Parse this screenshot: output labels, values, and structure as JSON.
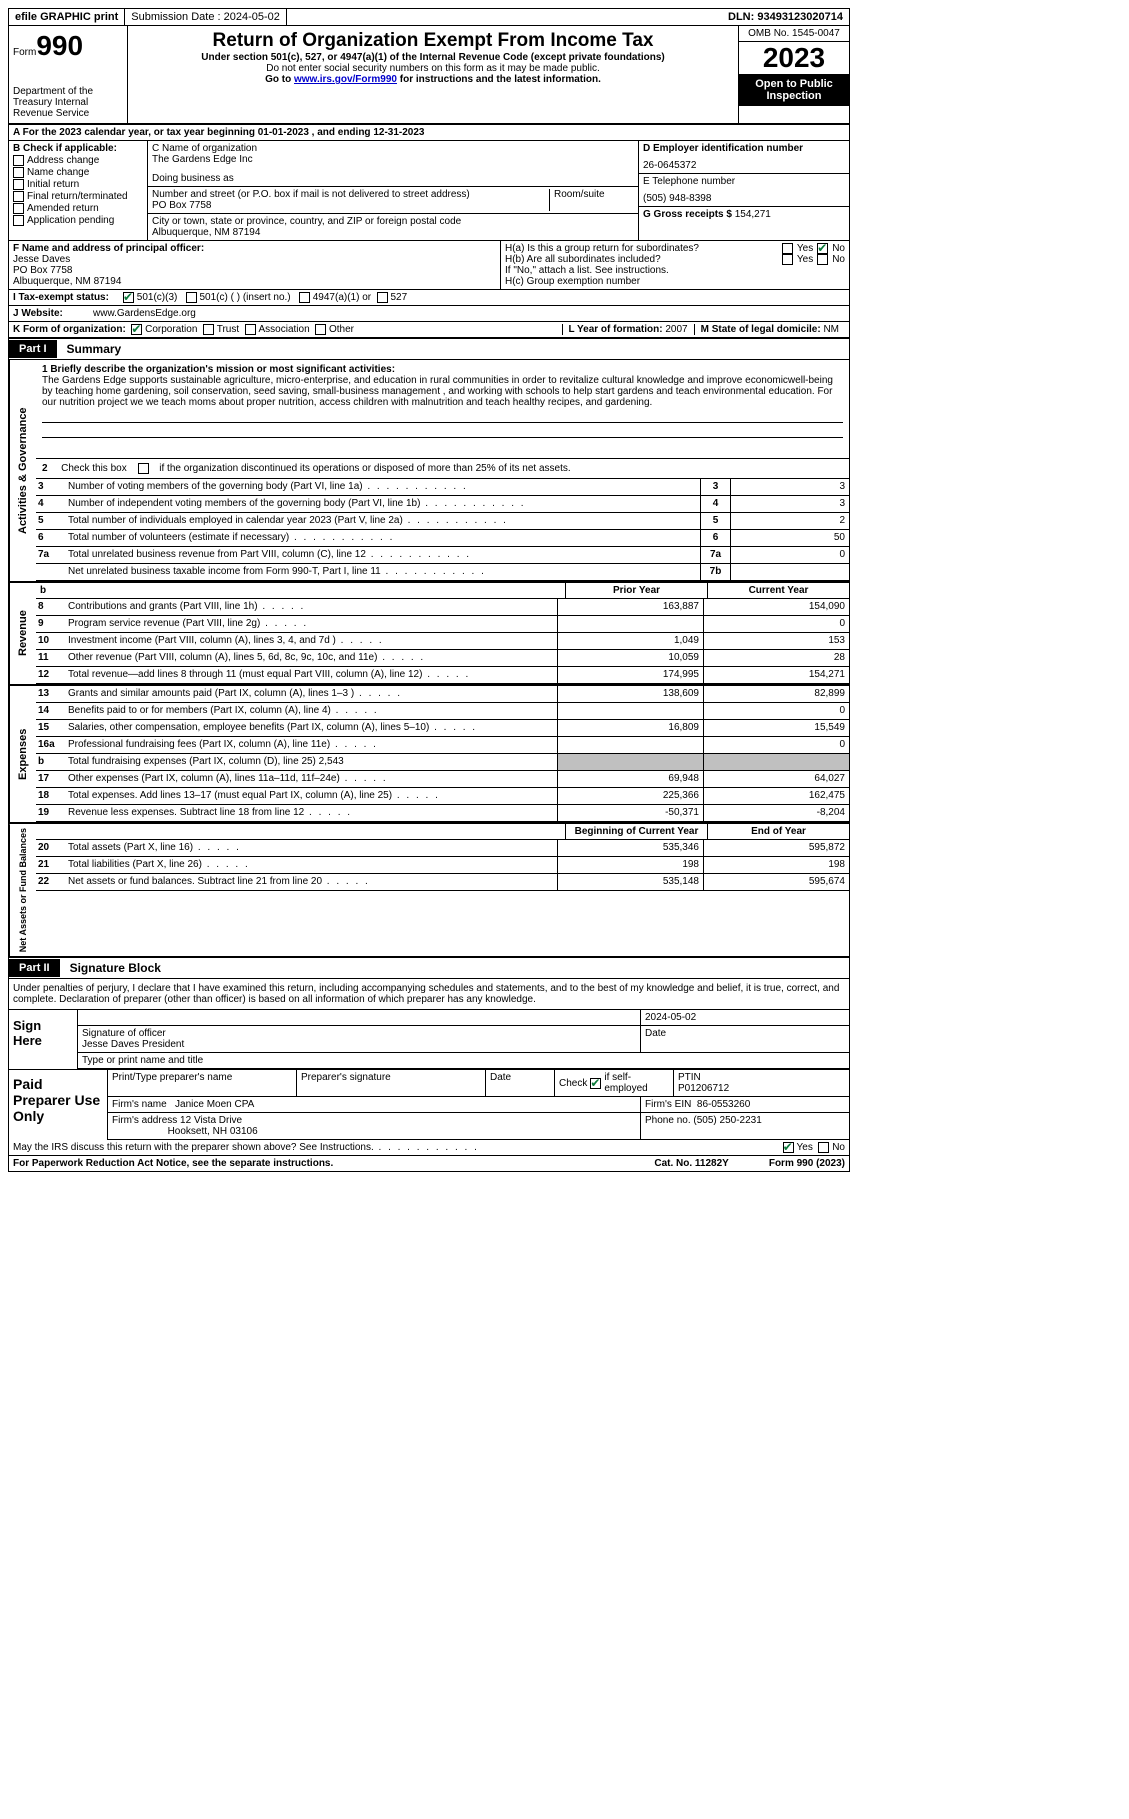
{
  "topbar": {
    "efile": "efile GRAPHIC print",
    "submission_label": "Submission Date : 2024-05-02",
    "dln": "DLN: 93493123020714"
  },
  "header": {
    "form_word": "Form",
    "form_num": "990",
    "dept": "Department of the Treasury Internal Revenue Service",
    "title": "Return of Organization Exempt From Income Tax",
    "subtitle": "Under section 501(c), 527, or 4947(a)(1) of the Internal Revenue Code (except private foundations)",
    "note1": "Do not enter social security numbers on this form as it may be made public.",
    "note2_pre": "Go to ",
    "note2_link": "www.irs.gov/Form990",
    "note2_post": " for instructions and the latest information.",
    "omb": "OMB No. 1545-0047",
    "year": "2023",
    "inspect": "Open to Public Inspection"
  },
  "section_a": "A  For the 2023 calendar year, or tax year beginning 01-01-2023   , and ending 12-31-2023",
  "col_b": {
    "label": "B Check if applicable:",
    "items": [
      "Address change",
      "Name change",
      "Initial return",
      "Final return/terminated",
      "Amended return",
      "Application pending"
    ]
  },
  "col_c": {
    "name_label": "C Name of organization",
    "name": "The Gardens Edge Inc",
    "dba_label": "Doing business as",
    "addr_label": "Number and street (or P.O. box if mail is not delivered to street address)",
    "room_label": "Room/suite",
    "addr": "PO Box 7758",
    "city_label": "City or town, state or province, country, and ZIP or foreign postal code",
    "city": "Albuquerque, NM  87194"
  },
  "col_d": {
    "ein_label": "D Employer identification number",
    "ein": "26-0645372",
    "phone_label": "E Telephone number",
    "phone": "(505) 948-8398",
    "gross_label": "G Gross receipts $",
    "gross": "154,271"
  },
  "officer": {
    "label": "F  Name and address of principal officer:",
    "name": "Jesse Daves",
    "addr1": "PO Box 7758",
    "addr2": "Albuquerque, NM  87194",
    "ha": "H(a)  Is this a group return for subordinates?",
    "hb": "H(b)  Are all subordinates included?",
    "hb_note": "If \"No,\" attach a list. See instructions.",
    "hc": "H(c)  Group exemption number",
    "yes": "Yes",
    "no": "No"
  },
  "status_row": {
    "label": "I   Tax-exempt status:",
    "c3": "501(c)(3)",
    "c_other": "501(c) (  ) (insert no.)",
    "a1": "4947(a)(1) or",
    "s527": "527"
  },
  "website": {
    "label": "J  Website:",
    "value": "www.GardensEdge.org"
  },
  "k_row": {
    "label": "K Form of organization:",
    "corp": "Corporation",
    "trust": "Trust",
    "assoc": "Association",
    "other": "Other",
    "year_label": "L Year of formation:",
    "year": "2007",
    "state_label": "M State of legal domicile:",
    "state": "NM"
  },
  "parts": {
    "p1": "Part I",
    "p1_title": "Summary",
    "p2": "Part II",
    "p2_title": "Signature Block"
  },
  "side": {
    "gov": "Activities & Governance",
    "rev": "Revenue",
    "exp": "Expenses",
    "net": "Net Assets or Fund Balances"
  },
  "mission": {
    "label": "1   Briefly describe the organization's mission or most significant activities:",
    "text": "The Gardens Edge supports sustainable agriculture, micro-enterprise, and education in rural communities in order to revitalize cultural knowledge and improve economicwell-being by teaching home gardening, soil conservation, seed saving, small-business management , and working with schools to help start gardens and teach environmental education. For our nutrition project we we teach moms about proper nutrition, access children with malnutrition and teach healthy recipes, and gardening."
  },
  "line2": "Check this box        if the organization discontinued its operations or disposed of more than 25% of its net assets.",
  "gov_lines": [
    {
      "n": "3",
      "d": "Number of voting members of the governing body (Part VI, line 1a)",
      "b": "3",
      "v": "3"
    },
    {
      "n": "4",
      "d": "Number of independent voting members of the governing body (Part VI, line 1b)",
      "b": "4",
      "v": "3"
    },
    {
      "n": "5",
      "d": "Total number of individuals employed in calendar year 2023 (Part V, line 2a)",
      "b": "5",
      "v": "2"
    },
    {
      "n": "6",
      "d": "Total number of volunteers (estimate if necessary)",
      "b": "6",
      "v": "50"
    },
    {
      "n": "7a",
      "d": "Total unrelated business revenue from Part VIII, column (C), line 12",
      "b": "7a",
      "v": "0"
    },
    {
      "n": "",
      "d": "Net unrelated business taxable income from Form 990-T, Part I, line 11",
      "b": "7b",
      "v": ""
    }
  ],
  "col_headers": {
    "prior": "Prior Year",
    "current": "Current Year",
    "begin": "Beginning of Current Year",
    "end": "End of Year"
  },
  "rev_lines": [
    {
      "n": "8",
      "d": "Contributions and grants (Part VIII, line 1h)",
      "v1": "163,887",
      "v2": "154,090"
    },
    {
      "n": "9",
      "d": "Program service revenue (Part VIII, line 2g)",
      "v1": "",
      "v2": "0"
    },
    {
      "n": "10",
      "d": "Investment income (Part VIII, column (A), lines 3, 4, and 7d )",
      "v1": "1,049",
      "v2": "153"
    },
    {
      "n": "11",
      "d": "Other revenue (Part VIII, column (A), lines 5, 6d, 8c, 9c, 10c, and 11e)",
      "v1": "10,059",
      "v2": "28"
    },
    {
      "n": "12",
      "d": "Total revenue—add lines 8 through 11 (must equal Part VIII, column (A), line 12)",
      "v1": "174,995",
      "v2": "154,271"
    }
  ],
  "exp_lines": [
    {
      "n": "13",
      "d": "Grants and similar amounts paid (Part IX, column (A), lines 1–3 )",
      "v1": "138,609",
      "v2": "82,899"
    },
    {
      "n": "14",
      "d": "Benefits paid to or for members (Part IX, column (A), line 4)",
      "v1": "",
      "v2": "0"
    },
    {
      "n": "15",
      "d": "Salaries, other compensation, employee benefits (Part IX, column (A), lines 5–10)",
      "v1": "16,809",
      "v2": "15,549"
    },
    {
      "n": "16a",
      "d": "Professional fundraising fees (Part IX, column (A), line 11e)",
      "v1": "",
      "v2": "0"
    }
  ],
  "line16b": {
    "n": "b",
    "d": "Total fundraising expenses (Part IX, column (D), line 25) 2,543"
  },
  "exp_lines2": [
    {
      "n": "17",
      "d": "Other expenses (Part IX, column (A), lines 11a–11d, 11f–24e)",
      "v1": "69,948",
      "v2": "64,027"
    },
    {
      "n": "18",
      "d": "Total expenses. Add lines 13–17 (must equal Part IX, column (A), line 25)",
      "v1": "225,366",
      "v2": "162,475"
    },
    {
      "n": "19",
      "d": "Revenue less expenses. Subtract line 18 from line 12",
      "v1": "-50,371",
      "v2": "-8,204"
    }
  ],
  "net_lines": [
    {
      "n": "20",
      "d": "Total assets (Part X, line 16)",
      "v1": "535,346",
      "v2": "595,872"
    },
    {
      "n": "21",
      "d": "Total liabilities (Part X, line 26)",
      "v1": "198",
      "v2": "198"
    },
    {
      "n": "22",
      "d": "Net assets or fund balances. Subtract line 21 from line 20",
      "v1": "535,148",
      "v2": "595,674"
    }
  ],
  "sig": {
    "declaration": "Under penalties of perjury, I declare that I have examined this return, including accompanying schedules and statements, and to the best of my knowledge and belief, it is true, correct, and complete. Declaration of preparer (other than officer) is based on all information of which preparer has any knowledge.",
    "sign_here": "Sign Here",
    "sig_officer": "Signature of officer",
    "date_label": "Date",
    "date": "2024-05-02",
    "officer_name": "Jesse Daves  President",
    "type_name": "Type or print name and title"
  },
  "prep": {
    "label": "Paid Preparer Use Only",
    "print_name": "Print/Type preparer's name",
    "prep_sig": "Preparer's signature",
    "date": "Date",
    "check_self": "Check         if self-employed",
    "ptin_label": "PTIN",
    "ptin": "P01206712",
    "firm_name_label": "Firm's name",
    "firm_name": "Janice Moen CPA",
    "firm_ein_label": "Firm's EIN",
    "firm_ein": "86-0553260",
    "firm_addr_label": "Firm's address",
    "firm_addr1": "12 Vista Drive",
    "firm_addr2": "Hooksett, NH  03106",
    "phone_label": "Phone no.",
    "phone": "(505) 250-2231"
  },
  "footer": {
    "discuss": "May the IRS discuss this return with the preparer shown above? See Instructions.",
    "yes": "Yes",
    "no": "No",
    "paperwork": "For Paperwork Reduction Act Notice, see the separate instructions.",
    "cat": "Cat. No. 11282Y",
    "form": "Form 990 (2023)"
  }
}
